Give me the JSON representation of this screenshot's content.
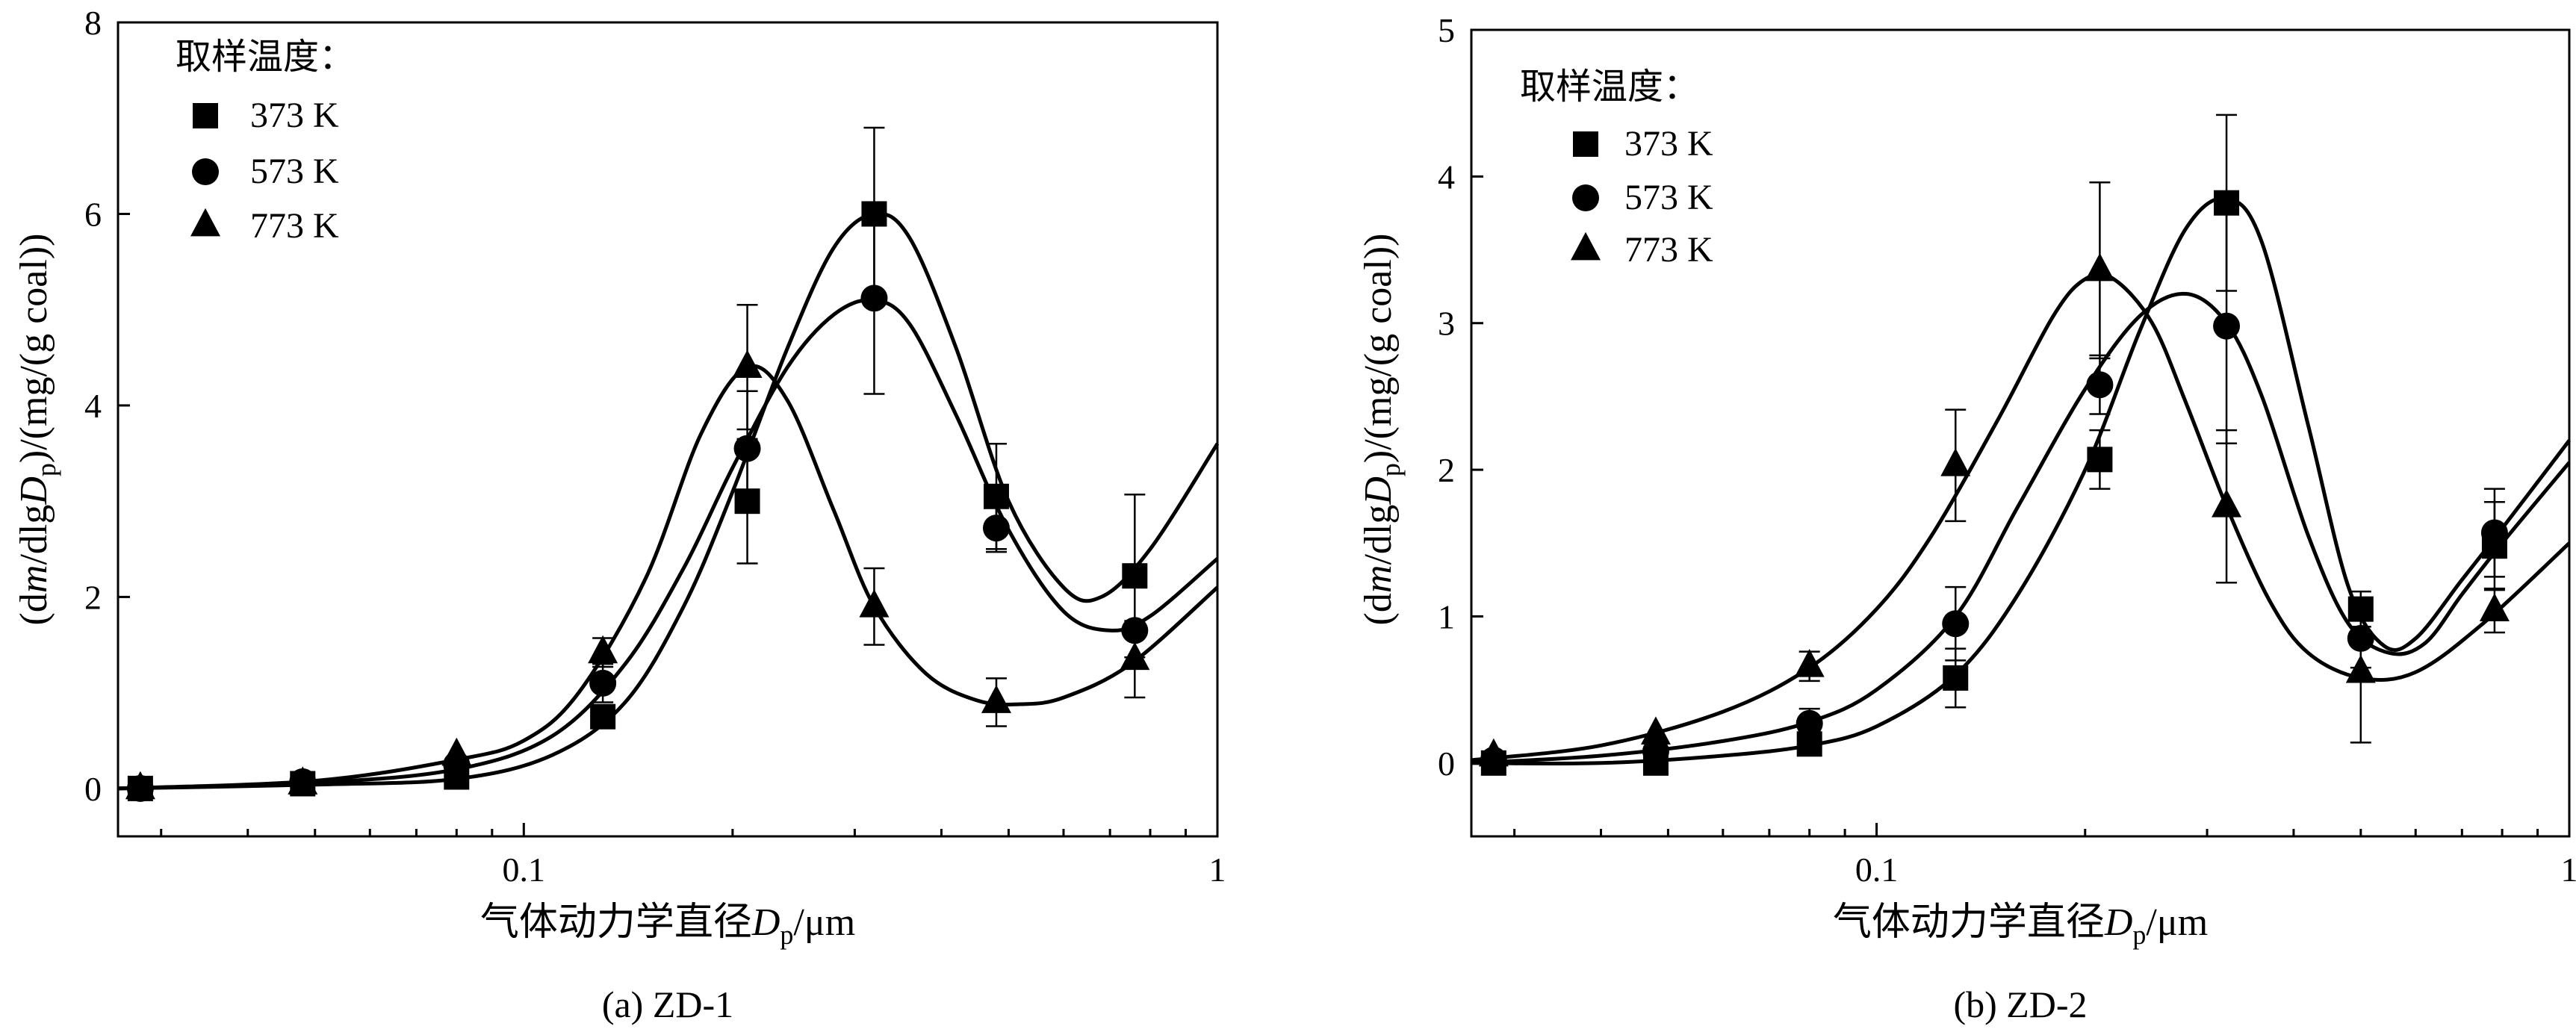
{
  "chart_data": [
    {
      "type": "scatter",
      "panel_caption": "(a) ZD-1",
      "xlabel": "气体动力学直径",
      "xlabel_symbol": "D",
      "xlabel_subscript": "p",
      "xlabel_unit": "/μm",
      "ylabel_prefix": "(d",
      "ylabel_m": "m",
      "ylabel_mid": "/dlg",
      "ylabel_symbol": "D",
      "ylabel_subscript": "p",
      "ylabel_suffix": ")/(mg/(g coal))",
      "x_scale": "log",
      "xlim": [
        0.026,
        1
      ],
      "ylim": [
        -0.5,
        8
      ],
      "x_ticks": [
        {
          "value": 0.1,
          "label": "0.1"
        },
        {
          "value": 1,
          "label": "1"
        }
      ],
      "y_ticks": [
        {
          "value": 0,
          "label": "0"
        },
        {
          "value": 2,
          "label": "2"
        },
        {
          "value": 4,
          "label": "4"
        },
        {
          "value": 6,
          "label": "6"
        },
        {
          "value": 8,
          "label": "8"
        }
      ],
      "legend_title": "取样温度：",
      "legend_position": "top-left",
      "series": [
        {
          "name": "373 K",
          "marker": "square",
          "x": [
            0.028,
            0.048,
            0.08,
            0.13,
            0.21,
            0.32,
            0.48,
            0.76
          ],
          "y": [
            0.0,
            0.05,
            0.12,
            0.75,
            3.0,
            6.0,
            3.05,
            2.22
          ],
          "err": [
            0,
            0,
            0,
            0,
            0.65,
            0.9,
            0.55,
            0.85
          ],
          "curve_x": [
            0.026,
            0.05,
            0.08,
            0.11,
            0.14,
            0.17,
            0.2,
            0.24,
            0.28,
            0.32,
            0.36,
            0.42,
            0.5,
            0.6,
            0.68,
            0.8,
            1.0
          ],
          "curve_y": [
            0.0,
            0.04,
            0.1,
            0.35,
            0.9,
            1.9,
            3.1,
            4.6,
            5.65,
            6.0,
            5.75,
            4.6,
            3.0,
            2.1,
            2.0,
            2.5,
            3.6
          ]
        },
        {
          "name": "573 K",
          "marker": "circle",
          "x": [
            0.028,
            0.048,
            0.08,
            0.13,
            0.21,
            0.32,
            0.48,
            0.76
          ],
          "y": [
            0.0,
            0.07,
            0.25,
            1.1,
            3.55,
            5.12,
            2.72,
            1.65
          ],
          "err": [
            0,
            0,
            0,
            0.2,
            0.6,
            1.0,
            0.25,
            0
          ],
          "curve_x": [
            0.026,
            0.05,
            0.08,
            0.11,
            0.14,
            0.17,
            0.2,
            0.24,
            0.28,
            0.32,
            0.36,
            0.42,
            0.5,
            0.6,
            0.7,
            0.8,
            1.0
          ],
          "curve_y": [
            0.0,
            0.06,
            0.2,
            0.55,
            1.3,
            2.3,
            3.35,
            4.4,
            4.95,
            5.1,
            4.85,
            3.9,
            2.7,
            1.85,
            1.65,
            1.8,
            2.4
          ]
        },
        {
          "name": "773 K",
          "marker": "triangle",
          "x": [
            0.028,
            0.048,
            0.08,
            0.13,
            0.21,
            0.32,
            0.48,
            0.76
          ],
          "y": [
            0.0,
            0.05,
            0.35,
            1.42,
            4.4,
            1.9,
            0.9,
            1.35
          ],
          "err": [
            0,
            0,
            0,
            0.15,
            0.65,
            0.4,
            0.25,
            0.4
          ],
          "curve_x": [
            0.026,
            0.05,
            0.08,
            0.1,
            0.12,
            0.15,
            0.18,
            0.21,
            0.24,
            0.28,
            0.32,
            0.38,
            0.45,
            0.52,
            0.6,
            0.75,
            1.0
          ],
          "curve_y": [
            0.0,
            0.08,
            0.3,
            0.5,
            1.0,
            2.2,
            3.7,
            4.4,
            4.05,
            2.9,
            1.9,
            1.2,
            0.92,
            0.88,
            0.95,
            1.3,
            2.1
          ]
        }
      ]
    },
    {
      "type": "scatter",
      "panel_caption": "(b) ZD-2",
      "xlabel": "气体动力学直径",
      "xlabel_symbol": "D",
      "xlabel_subscript": "p",
      "xlabel_unit": "/μm",
      "ylabel_prefix": "(d",
      "ylabel_m": "m",
      "ylabel_mid": "/dlg",
      "ylabel_symbol": "D",
      "ylabel_subscript": "p",
      "ylabel_suffix": ")/(mg/(g coal))",
      "x_scale": "log",
      "xlim": [
        0.026,
        1
      ],
      "ylim": [
        -0.5,
        5
      ],
      "x_ticks": [
        {
          "value": 0.1,
          "label": "0.1"
        },
        {
          "value": 1,
          "label": "1"
        }
      ],
      "y_ticks": [
        {
          "value": 0,
          "label": "0"
        },
        {
          "value": 1,
          "label": "1"
        },
        {
          "value": 2,
          "label": "2"
        },
        {
          "value": 3,
          "label": "3"
        },
        {
          "value": 4,
          "label": "4"
        },
        {
          "value": 5,
          "label": "5"
        }
      ],
      "legend_title": "取样温度：",
      "legend_position": "top-left",
      "series": [
        {
          "name": "373 K",
          "marker": "square",
          "x": [
            0.028,
            0.048,
            0.08,
            0.13,
            0.21,
            0.32,
            0.5,
            0.78
          ],
          "y": [
            0.0,
            0.0,
            0.13,
            0.58,
            2.07,
            3.82,
            1.05,
            1.48
          ],
          "err": [
            0,
            0,
            0,
            0.2,
            0.2,
            0.6,
            0.12,
            0.3
          ],
          "curve_x": [
            0.026,
            0.04,
            0.06,
            0.08,
            0.1,
            0.13,
            0.16,
            0.2,
            0.24,
            0.28,
            0.32,
            0.36,
            0.42,
            0.48,
            0.54,
            0.6,
            0.7,
            0.8,
            1.0
          ],
          "curve_y": [
            0.0,
            0.0,
            0.05,
            0.12,
            0.25,
            0.6,
            1.15,
            2.0,
            2.95,
            3.65,
            3.85,
            3.55,
            2.3,
            1.2,
            0.8,
            0.85,
            1.25,
            1.6,
            2.2
          ]
        },
        {
          "name": "573 K",
          "marker": "circle",
          "x": [
            0.028,
            0.048,
            0.08,
            0.13,
            0.21,
            0.32,
            0.5,
            0.78
          ],
          "y": [
            0.02,
            0.08,
            0.27,
            0.95,
            2.58,
            2.98,
            0.85,
            1.57
          ],
          "err": [
            0,
            0,
            0.1,
            0.25,
            0.2,
            0.8,
            0.2,
            0.3
          ],
          "curve_x": [
            0.026,
            0.04,
            0.06,
            0.08,
            0.1,
            0.13,
            0.16,
            0.2,
            0.24,
            0.28,
            0.32,
            0.36,
            0.42,
            0.48,
            0.55,
            0.62,
            0.7,
            0.8,
            1.0
          ],
          "curve_y": [
            0.0,
            0.05,
            0.15,
            0.28,
            0.5,
            1.0,
            1.75,
            2.55,
            3.05,
            3.2,
            3.0,
            2.5,
            1.55,
            0.95,
            0.75,
            0.82,
            1.15,
            1.5,
            2.05
          ]
        },
        {
          "name": "773 K",
          "marker": "triangle",
          "x": [
            0.028,
            0.048,
            0.08,
            0.13,
            0.21,
            0.32,
            0.5,
            0.78
          ],
          "y": [
            0.05,
            0.2,
            0.66,
            2.03,
            3.36,
            1.75,
            0.62,
            1.04
          ],
          "err": [
            0,
            0,
            0.1,
            0.38,
            0.6,
            0.52,
            0.48,
            0.15
          ],
          "curve_x": [
            0.026,
            0.04,
            0.06,
            0.08,
            0.1,
            0.12,
            0.15,
            0.18,
            0.2,
            0.22,
            0.25,
            0.28,
            0.32,
            0.37,
            0.42,
            0.5,
            0.6,
            0.75,
            1.0
          ],
          "curve_y": [
            0.02,
            0.12,
            0.35,
            0.65,
            1.05,
            1.55,
            2.35,
            3.05,
            3.3,
            3.3,
            3.0,
            2.45,
            1.75,
            1.1,
            0.75,
            0.58,
            0.62,
            0.95,
            1.5
          ]
        }
      ]
    }
  ]
}
